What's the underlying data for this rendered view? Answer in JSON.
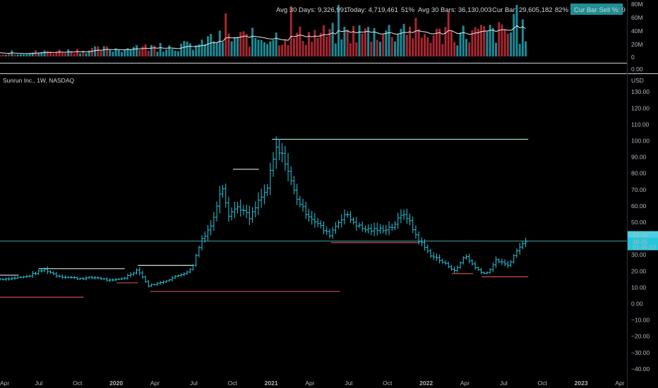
{
  "stats": {
    "avg30days": "Avg 30 Days: 9,326,991",
    "today": "Today: 4,719,461",
    "today_pct": "51%",
    "avg30bars": "Avg 30 Bars: 36,130,003",
    "curbar": "Cur Bar: 29,605,182",
    "curbar_pct": "82%",
    "badge": "Cur Bar Sell %: 9"
  },
  "symbol_title": "Sunrun Inc., 1W, NASDAQ",
  "currency": "USD",
  "price_badge": {
    "close": "38.43",
    "last": "38.35",
    "timer": "01:45:23"
  },
  "colors": {
    "background": "#000000",
    "price": "#26c6da",
    "volume_up": "#1b8a96",
    "volume_down": "#a52731",
    "resistance": "#e0e0e0",
    "resistance_high": "#a6e3e0",
    "support_red": "#c2524f",
    "current_line": "#3fa3a8"
  },
  "volume_axis": {
    "ticks": [
      "80M",
      "60M",
      "40M",
      "20M",
      "0"
    ],
    "extra": "0.00"
  },
  "x_axis": {
    "ticks": [
      "Apr",
      "Jul",
      "Oct",
      "2020",
      "Apr",
      "Jul",
      "Oct",
      "2021",
      "Apr",
      "Jul",
      "Oct",
      "2022",
      "Apr",
      "Jul",
      "Oct",
      "2023",
      "Apr"
    ],
    "bold": [
      false,
      false,
      false,
      true,
      false,
      false,
      false,
      true,
      false,
      false,
      false,
      true,
      false,
      false,
      false,
      true,
      false
    ]
  },
  "chart_data": {
    "type": "ohlc",
    "title": "Sunrun Inc., 1W, NASDAQ",
    "y_unit": "USD",
    "ylim": [
      -40,
      130
    ],
    "y_ticks": [
      "130.00",
      "120.00",
      "110.00",
      "100.00",
      "90.00",
      "80.00",
      "70.00",
      "60.00",
      "50.00",
      "40.00",
      "30.00",
      "20.00",
      "10.00",
      "0.00",
      "−10.00",
      "−20.00",
      "−30.00",
      "−40.00"
    ],
    "x_start": "2019-04-01",
    "x_end": "2023-04-01",
    "last_price": 38.43,
    "levels": [
      {
        "type": "resistance",
        "from": "2019-04-01",
        "to": "2019-05-15",
        "price": 17.5
      },
      {
        "type": "resistance",
        "from": "2019-07-01",
        "to": "2020-01-20",
        "price": 21.5
      },
      {
        "type": "resistance",
        "from": "2020-02-20",
        "to": "2020-06-30",
        "price": 23.5
      },
      {
        "type": "resistance",
        "from": "2020-10-01",
        "to": "2020-12-01",
        "price": 82.5
      },
      {
        "type": "resistance",
        "from": "2021-01-01",
        "to": "2022-08-28",
        "price": 100.9
      },
      {
        "type": "support",
        "from": "2019-04-01",
        "to": "2019-10-15",
        "price": 4.0
      },
      {
        "type": "support",
        "from": "2020-01-01",
        "to": "2020-02-20",
        "price": 12.8
      },
      {
        "type": "support",
        "from": "2020-03-20",
        "to": "2021-06-10",
        "price": 7.5
      },
      {
        "type": "support",
        "from": "2021-05-20",
        "to": "2021-12-15",
        "price": 37.5
      },
      {
        "type": "support",
        "from": "2022-03-01",
        "to": "2022-04-20",
        "price": 18.5
      },
      {
        "type": "support",
        "from": "2022-05-10",
        "to": "2022-08-28",
        "price": 16.5
      }
    ],
    "weekly_close_anchors": [
      [
        "2019-04-01",
        15
      ],
      [
        "2019-06-01",
        16.5
      ],
      [
        "2019-07-15",
        21
      ],
      [
        "2019-08-15",
        17
      ],
      [
        "2019-10-01",
        15.5
      ],
      [
        "2019-11-15",
        16
      ],
      [
        "2019-12-20",
        14
      ],
      [
        "2020-01-20",
        16
      ],
      [
        "2020-02-20",
        21
      ],
      [
        "2020-03-15",
        11
      ],
      [
        "2020-04-15",
        13
      ],
      [
        "2020-06-01",
        18
      ],
      [
        "2020-06-25",
        21
      ],
      [
        "2020-07-20",
        40
      ],
      [
        "2020-08-15",
        50
      ],
      [
        "2020-09-05",
        75
      ],
      [
        "2020-09-20",
        55
      ],
      [
        "2020-10-15",
        60
      ],
      [
        "2020-11-10",
        52
      ],
      [
        "2020-12-01",
        63
      ],
      [
        "2020-12-20",
        70
      ],
      [
        "2021-01-10",
        95
      ],
      [
        "2021-02-01",
        88
      ],
      [
        "2021-02-20",
        70
      ],
      [
        "2021-03-15",
        58
      ],
      [
        "2021-04-15",
        50
      ],
      [
        "2021-05-15",
        42
      ],
      [
        "2021-06-20",
        55
      ],
      [
        "2021-08-01",
        46
      ],
      [
        "2021-09-01",
        45
      ],
      [
        "2021-10-10",
        47
      ],
      [
        "2021-11-10",
        56
      ],
      [
        "2021-12-10",
        40
      ],
      [
        "2022-01-10",
        30
      ],
      [
        "2022-02-10",
        25
      ],
      [
        "2022-03-10",
        20
      ],
      [
        "2022-04-01",
        30
      ],
      [
        "2022-04-25",
        22
      ],
      [
        "2022-05-20",
        18
      ],
      [
        "2022-06-15",
        27
      ],
      [
        "2022-07-10",
        23
      ],
      [
        "2022-08-10",
        36
      ],
      [
        "2022-08-28",
        38.4
      ]
    ],
    "volume": {
      "unit": "shares",
      "ylim": [
        0,
        80000000
      ],
      "avg30_bars": 36130003,
      "current_bar": 29605182
    }
  }
}
